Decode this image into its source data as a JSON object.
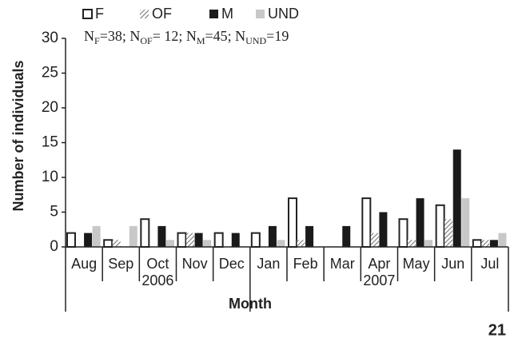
{
  "chart_data": {
    "type": "bar",
    "y_label": "Number of individuals",
    "x_label": "Month",
    "corner_text": "21",
    "annotation": [
      {
        "text": "N",
        "sub": "F",
        "after": "=38; "
      },
      {
        "text": "N",
        "sub": "OF",
        "after": "= 12; "
      },
      {
        "text": "N",
        "sub": "M",
        "after": "=45; "
      },
      {
        "text": "N",
        "sub": "UND",
        "after": "=19"
      }
    ],
    "categories": [
      "Aug",
      "Sep",
      "Oct",
      "Nov",
      "Dec",
      "Jan",
      "Feb",
      "Mar",
      "Apr",
      "May",
      "Jun",
      "Jul"
    ],
    "groups": [
      "2006",
      "2006",
      "2006",
      "2006",
      "2006",
      "2007",
      "2007",
      "2007",
      "2007",
      "2007",
      "2007",
      "2007"
    ],
    "series": [
      {
        "name": "F",
        "color": "#ffffff",
        "values": [
          2,
          1,
          4,
          2,
          2,
          2,
          7,
          0,
          7,
          4,
          6,
          1
        ]
      },
      {
        "name": "OF",
        "color": "#777777",
        "hatch": true,
        "values": [
          0,
          1,
          0,
          2,
          0,
          0,
          1,
          0,
          2,
          1,
          4,
          1
        ]
      },
      {
        "name": "M",
        "color": "#1a1a1a",
        "values": [
          2,
          0,
          3,
          2,
          2,
          3,
          3,
          3,
          5,
          7,
          14,
          1
        ]
      },
      {
        "name": "UND",
        "color": "#c8c8c8",
        "values": [
          3,
          3,
          1,
          1,
          0,
          1,
          0,
          0,
          0,
          1,
          7,
          2
        ]
      }
    ],
    "ylim": [
      0,
      30
    ],
    "yticks": [
      0,
      5,
      10,
      15,
      20,
      25,
      30
    ],
    "grid": false
  }
}
